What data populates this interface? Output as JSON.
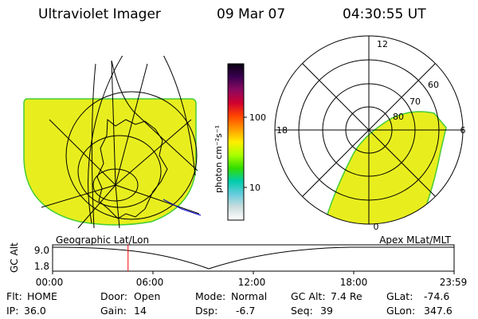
{
  "header": {
    "instrument": "Ultraviolet Imager",
    "date": "09 Mar 07",
    "time": "04:30:55 UT"
  },
  "colors": {
    "aurora_fill": "#e8ee1e",
    "aurora_edge": "#44cc33",
    "grid_line": "#000000",
    "cursor_line": "#ff0000",
    "overlay_line": "#0000cc"
  },
  "colorbar": {
    "unit_label": "photon cm⁻²s⁻¹",
    "ticks": [
      "100",
      "10"
    ],
    "stops": [
      "#0a0010",
      "#3a0050",
      "#8a0a60",
      "#d00030",
      "#ff4400",
      "#ff9900",
      "#ffee00",
      "#aaff00",
      "#33dd00",
      "#00ccaa",
      "#66ccdd",
      "#ccdddd",
      "#ffffff"
    ]
  },
  "polar_plot": {
    "mlt_labels": [
      "12",
      "18",
      "6",
      "0"
    ],
    "lat_labels": [
      "60",
      "70",
      "80"
    ]
  },
  "altitude_plot": {
    "left_label": "Geographic Lat/Lon",
    "right_label": "Apex MLat/MLT",
    "y_axis_label": "GC Alt",
    "y_ticks": [
      "9.0",
      "1.8"
    ],
    "x_ticks": [
      "00:00",
      "06:00",
      "12:00",
      "18:00",
      "23:59"
    ],
    "cursor_fraction": 0.188
  },
  "info_rows": [
    [
      {
        "label": "Flt:",
        "value": "HOME"
      },
      {
        "label": "Door:",
        "value": "Open"
      },
      {
        "label": "Mode:",
        "value": "Normal"
      },
      {
        "label": "GC Alt:",
        "value": "7.4 Re"
      },
      {
        "label": "GLat:",
        "value": "-74.6"
      }
    ],
    [
      {
        "label": "IP:",
        "value": "36.0"
      },
      {
        "label": "Gain:",
        "value": "14"
      },
      {
        "label": "Dsp:",
        "value": "-6.7"
      },
      {
        "label": "Seq:",
        "value": "39"
      },
      {
        "label": "GLon:",
        "value": "347.6"
      }
    ]
  ]
}
